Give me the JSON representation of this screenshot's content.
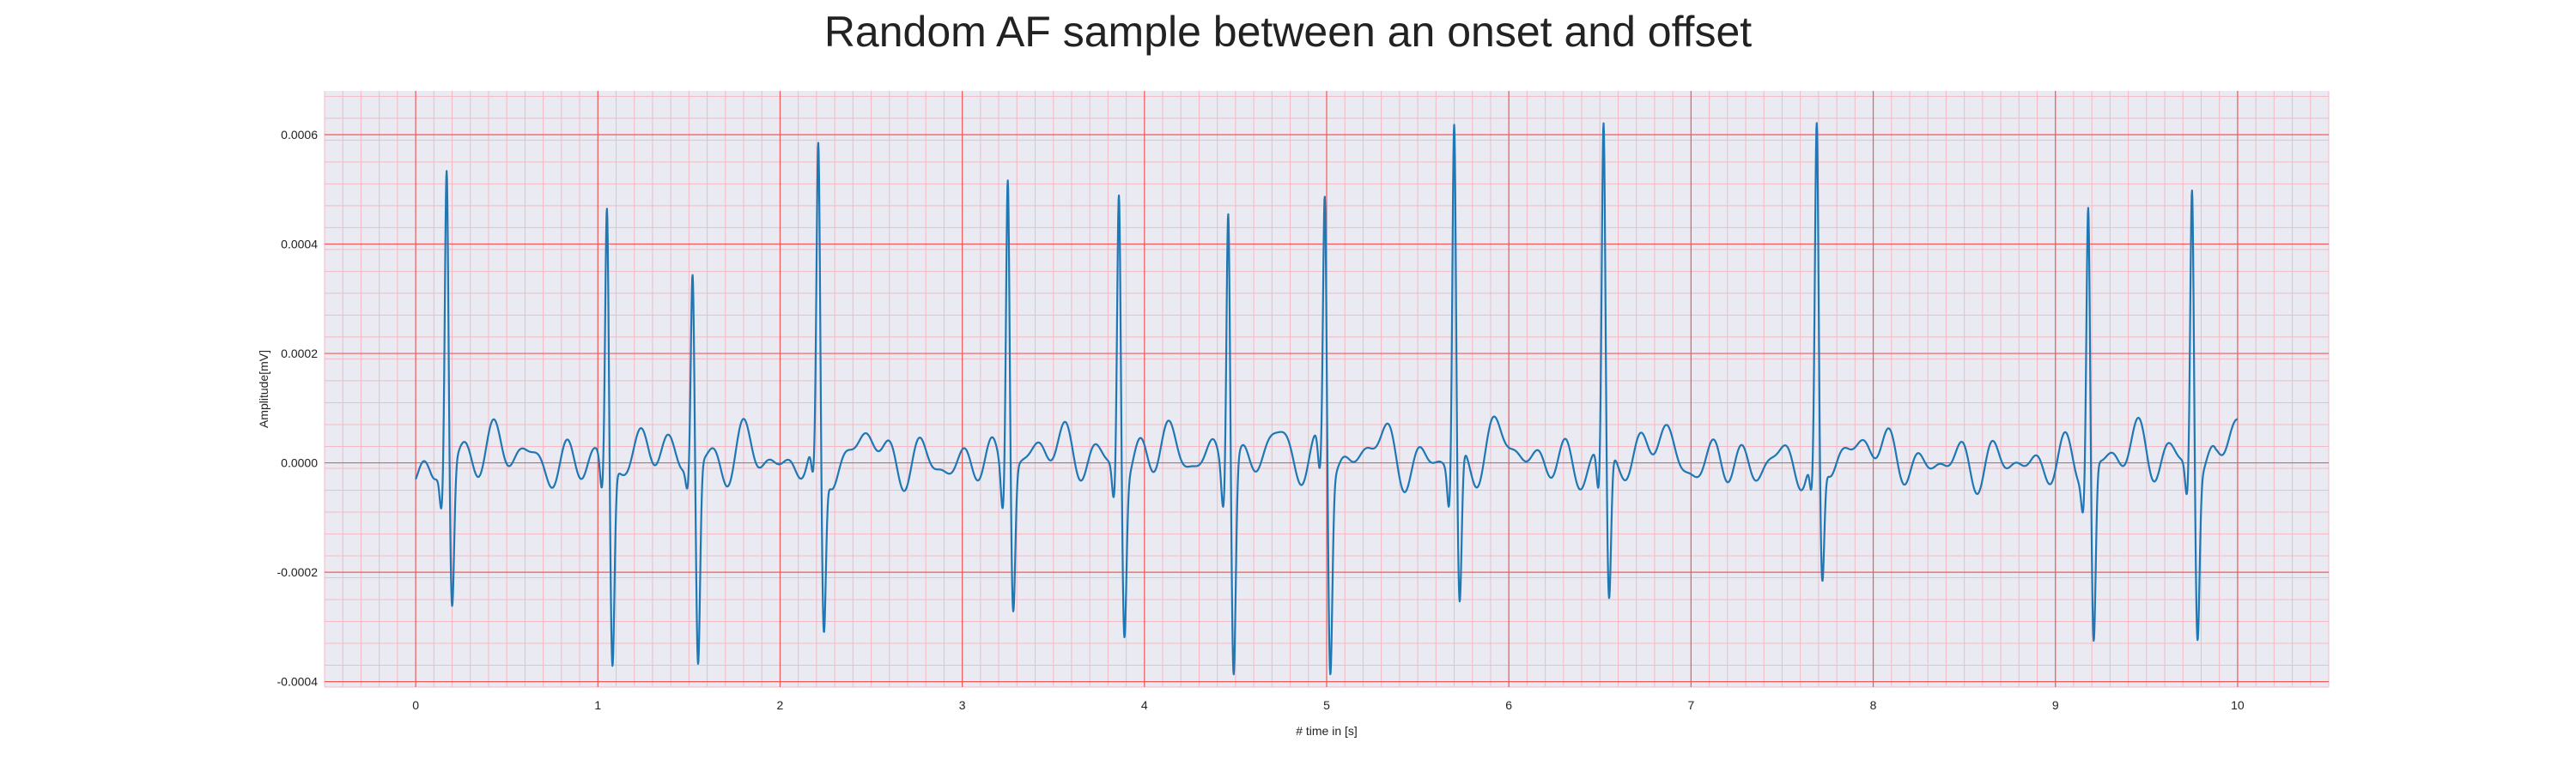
{
  "chart_data": {
    "type": "line",
    "title": "Random AF sample between an onset and offset",
    "xlabel": "# time in [s]",
    "ylabel": "Amplitude[mV]",
    "xlim": [
      -0.5,
      10.5
    ],
    "ylim": [
      -0.00041,
      0.00068
    ],
    "xticks": [
      0,
      1,
      2,
      3,
      4,
      5,
      6,
      7,
      8,
      9,
      10
    ],
    "xtick_labels": [
      "0",
      "1",
      "2",
      "3",
      "4",
      "5",
      "6",
      "7",
      "8",
      "9",
      "10"
    ],
    "yticks": [
      -0.0004,
      -0.0002,
      0.0,
      0.0002,
      0.0004,
      0.0006
    ],
    "ytick_labels": [
      "-0.0004",
      "-0.0002",
      "0.0000",
      "0.0002",
      "0.0004",
      "0.0006"
    ],
    "grid": true,
    "minor_grid": true,
    "colors": {
      "line": "#1f77b4",
      "plot_background": "#eaeaf2",
      "major_grid": "#f05a5a",
      "minor_grid": "#f4b9c3"
    },
    "series": [
      {
        "beats": [
          {
            "t": 0.17,
            "r": 0.000555,
            "s": -0.00026
          },
          {
            "t": 1.05,
            "r": 0.000485,
            "s": -0.00036
          },
          {
            "t": 1.52,
            "r": 0.00035,
            "s": -0.000375
          },
          {
            "t": 2.21,
            "r": 0.000545,
            "s": -0.000315
          },
          {
            "t": 3.25,
            "r": 0.000565,
            "s": -0.00025
          },
          {
            "t": 3.86,
            "r": 0.00052,
            "s": -0.000285
          },
          {
            "t": 4.46,
            "r": 0.000515,
            "s": -0.000365
          },
          {
            "t": 4.99,
            "r": 0.000495,
            "s": -0.00036
          },
          {
            "t": 5.7,
            "r": 0.00063,
            "s": -0.000275
          },
          {
            "t": 6.52,
            "r": 0.00061,
            "s": -0.00027
          },
          {
            "t": 7.69,
            "r": 0.00059,
            "s": -0.00023
          },
          {
            "t": 9.18,
            "r": 0.00049,
            "s": -0.00033
          },
          {
            "t": 9.75,
            "r": 0.00052,
            "s": -0.0003
          }
        ],
        "fibrillatory_wave_amplitude": 3e-05,
        "start_value": -3e-05,
        "end_value": 8e-05
      }
    ]
  }
}
